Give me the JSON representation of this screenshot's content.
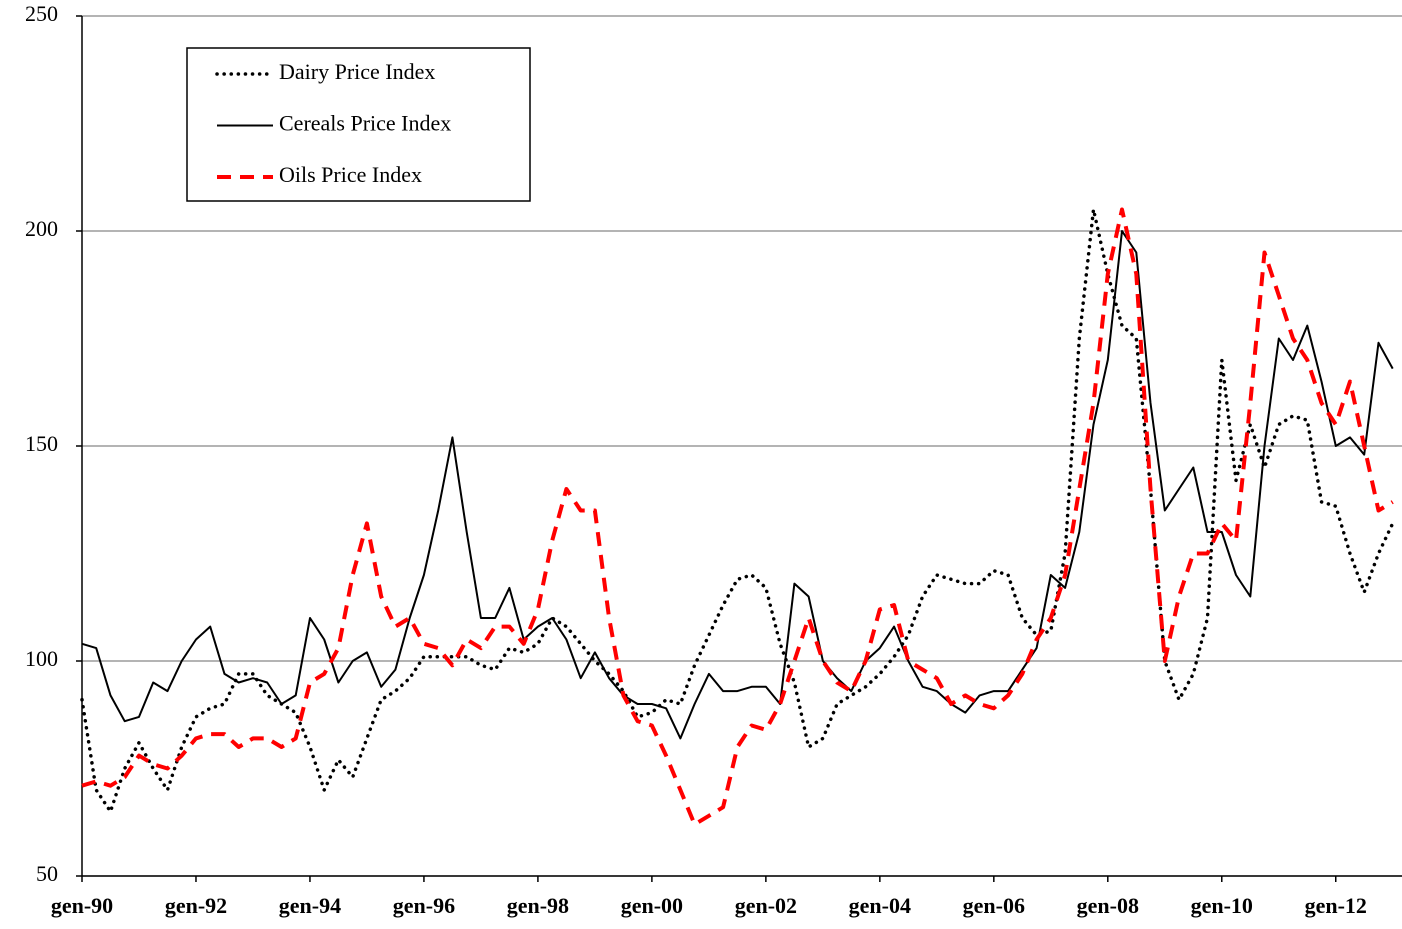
{
  "chart_data": {
    "type": "line",
    "categories": [
      "gen-90",
      null,
      null,
      null,
      null,
      null,
      null,
      null,
      "gen-92",
      null,
      null,
      null,
      null,
      null,
      null,
      null,
      "gen-94",
      null,
      null,
      null,
      null,
      null,
      null,
      null,
      "gen-96",
      null,
      null,
      null,
      null,
      null,
      null,
      null,
      "gen-98",
      null,
      null,
      null,
      null,
      null,
      null,
      null,
      "gen-00",
      null,
      null,
      null,
      null,
      null,
      null,
      null,
      "gen-02",
      null,
      null,
      null,
      null,
      null,
      null,
      null,
      "gen-04",
      null,
      null,
      null,
      null,
      null,
      null,
      null,
      "gen-06",
      null,
      null,
      null,
      null,
      null,
      null,
      null,
      "gen-08",
      null,
      null,
      null,
      null,
      null,
      null,
      null,
      "gen-10",
      null,
      null,
      null,
      null,
      null,
      null,
      null,
      "gen-12",
      null,
      null,
      null,
      null
    ],
    "series": [
      {
        "name": "Dairy Price Index",
        "color": "#000000",
        "line_style": "dotted",
        "values": [
          91,
          70,
          65,
          75,
          81,
          75,
          70,
          80,
          87,
          89,
          90,
          97,
          97,
          92,
          90,
          88,
          80,
          70,
          77,
          73,
          82,
          91,
          93,
          96,
          101,
          101,
          101,
          101,
          99,
          98,
          103,
          102,
          104,
          110,
          108,
          104,
          100,
          97,
          93,
          87,
          88,
          91,
          90,
          99,
          106,
          113,
          119,
          120,
          117,
          104,
          95,
          80,
          82,
          90,
          92,
          94,
          97,
          101,
          106,
          115,
          120,
          119,
          118,
          118,
          121,
          120,
          110,
          106,
          107,
          125,
          175,
          205,
          190,
          178,
          175,
          140,
          100,
          91,
          97,
          110,
          170,
          142,
          155,
          145,
          155,
          157,
          156,
          137,
          136,
          125,
          116,
          125,
          132
        ]
      },
      {
        "name": "Cereals Price Index",
        "color": "#000000",
        "line_style": "solid",
        "values": [
          104,
          103,
          92,
          86,
          87,
          95,
          93,
          100,
          105,
          108,
          97,
          95,
          96,
          95,
          90,
          92,
          110,
          105,
          95,
          100,
          102,
          94,
          98,
          110,
          120,
          135,
          152,
          130,
          110,
          110,
          117,
          105,
          108,
          110,
          105,
          96,
          102,
          96,
          92,
          90,
          90,
          89,
          82,
          90,
          97,
          93,
          93,
          94,
          94,
          90,
          118,
          115,
          100,
          96,
          93,
          100,
          103,
          108,
          100,
          94,
          93,
          90,
          88,
          92,
          93,
          93,
          98,
          103,
          120,
          117,
          130,
          155,
          170,
          200,
          195,
          160,
          135,
          140,
          145,
          130,
          130,
          120,
          115,
          150,
          175,
          170,
          178,
          165,
          150,
          152,
          148,
          174,
          168
        ]
      },
      {
        "name": "Oils Price Index",
        "color": "#ff0000",
        "line_style": "dashed",
        "values": [
          71,
          72,
          71,
          73,
          78,
          76,
          75,
          78,
          82,
          83,
          83,
          80,
          82,
          82,
          80,
          82,
          95,
          97,
          103,
          120,
          132,
          115,
          108,
          110,
          104,
          103,
          99,
          105,
          103,
          108,
          108,
          104,
          112,
          128,
          140,
          135,
          135,
          110,
          92,
          86,
          85,
          78,
          70,
          62,
          64,
          66,
          80,
          85,
          84,
          90,
          100,
          110,
          100,
          95,
          93,
          100,
          112,
          113,
          100,
          98,
          96,
          90,
          92,
          90,
          89,
          92,
          97,
          105,
          110,
          120,
          140,
          160,
          190,
          205,
          190,
          140,
          100,
          115,
          125,
          125,
          132,
          128,
          160,
          195,
          185,
          175,
          170,
          160,
          155,
          165,
          150,
          135,
          137
        ]
      }
    ],
    "ylim": [
      50,
      250
    ],
    "yticks": [
      50,
      100,
      150,
      200,
      250
    ],
    "grid": true,
    "legend": "upper-left"
  }
}
